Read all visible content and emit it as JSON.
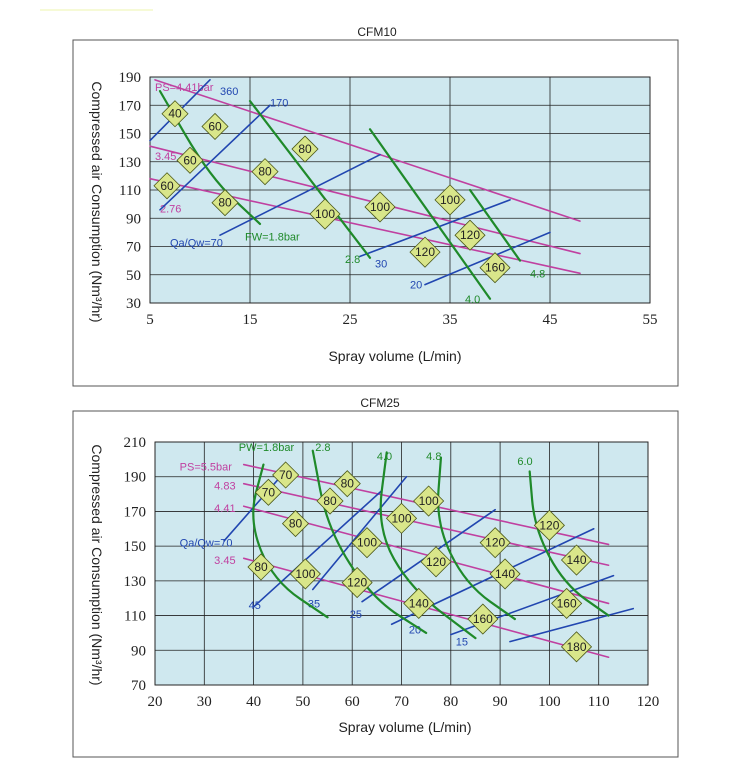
{
  "decor_line_color": "#f4f9c8",
  "colors": {
    "ps": "#c040a0",
    "fw": "#1f8a2a",
    "qa": "#2146b0",
    "diamond_fill": "#d9e68a",
    "diamond_stroke": "#4d5a1a",
    "plot_bg": "#cfe8ef"
  },
  "chart_data": [
    {
      "type": "line",
      "title": "CFM10",
      "xlabel": "Spray volume (L/min)",
      "ylabel": "Compressed air Consumption (Nm³/hr)",
      "xlim": [
        5,
        55
      ],
      "ylim": [
        30,
        190
      ],
      "xticks": [
        5,
        15,
        25,
        35,
        45,
        55
      ],
      "yticks": [
        30,
        50,
        70,
        90,
        110,
        130,
        150,
        170,
        190
      ],
      "grid": true,
      "series": [
        {
          "group": "ps",
          "name": "PS=4.41bar",
          "points": [
            [
              5.5,
              188
            ],
            [
              48,
              88
            ]
          ],
          "label": {
            "text": "PS=4.41bar",
            "at": [
              5.5,
              183
            ]
          }
        },
        {
          "group": "ps",
          "name": "3.45",
          "points": [
            [
              5,
              141
            ],
            [
              48,
              65
            ]
          ],
          "label": {
            "text": "3.45",
            "at": [
              5.5,
              134
            ]
          }
        },
        {
          "group": "ps",
          "name": "2.76",
          "points": [
            [
              5,
              118
            ],
            [
              48,
              51
            ]
          ],
          "label": {
            "text": "2.76",
            "at": [
              6,
              97
            ]
          }
        },
        {
          "group": "qa",
          "name": "360",
          "points": [
            [
              5,
              145
            ],
            [
              11,
              188
            ]
          ],
          "label": {
            "text": "360",
            "at": [
              12,
              180
            ]
          }
        },
        {
          "group": "qa",
          "name": "170",
          "points": [
            [
              6,
              96
            ],
            [
              17,
              170
            ]
          ],
          "label": {
            "text": "170",
            "at": [
              17,
              172
            ]
          }
        },
        {
          "group": "qa",
          "name": "Qa/Qw=70",
          "points": [
            [
              12,
              78
            ],
            [
              28,
              135
            ]
          ],
          "label": {
            "text": "Qa/Qw=70",
            "at": [
              7,
              73
            ]
          }
        },
        {
          "group": "qa",
          "name": "30",
          "points": [
            [
              26,
              63
            ],
            [
              41,
              103
            ]
          ],
          "label": {
            "text": "30",
            "at": [
              27.5,
              58
            ]
          }
        },
        {
          "group": "qa",
          "name": "20",
          "points": [
            [
              32.5,
              43
            ],
            [
              45,
              80
            ]
          ],
          "label": {
            "text": "20",
            "at": [
              31,
              43
            ]
          }
        },
        {
          "group": "fw",
          "name": "FW=1.8bar",
          "points": [
            [
              6,
              180
            ],
            [
              11,
              119
            ],
            [
              16,
              86
            ]
          ],
          "label": {
            "text": "FW=1.8bar",
            "at": [
              14.5,
              77
            ]
          }
        },
        {
          "group": "fw",
          "name": "2.8",
          "points": [
            [
              15,
              173
            ],
            [
              27,
              62
            ]
          ],
          "label": {
            "text": "2.8",
            "at": [
              24.5,
              61
            ]
          }
        },
        {
          "group": "fw",
          "name": "4.0",
          "points": [
            [
              27,
              153
            ],
            [
              39,
              33
            ]
          ],
          "label": {
            "text": "4.0",
            "at": [
              36.5,
              33
            ]
          }
        },
        {
          "group": "fw",
          "name": "4.8",
          "points": [
            [
              37,
              110
            ],
            [
              42,
              60
            ]
          ],
          "label": {
            "text": "4.8",
            "at": [
              43,
              51
            ]
          }
        }
      ],
      "annotations": [
        {
          "text": "40",
          "at": [
            7.5,
            164
          ]
        },
        {
          "text": "60",
          "at": [
            11.5,
            155
          ]
        },
        {
          "text": "60",
          "at": [
            9,
            131
          ]
        },
        {
          "text": "60",
          "at": [
            6.7,
            113
          ]
        },
        {
          "text": "80",
          "at": [
            12.5,
            101
          ]
        },
        {
          "text": "80",
          "at": [
            16.5,
            123
          ]
        },
        {
          "text": "80",
          "at": [
            20.5,
            139
          ]
        },
        {
          "text": "100",
          "at": [
            22.5,
            93
          ]
        },
        {
          "text": "100",
          "at": [
            28,
            98
          ]
        },
        {
          "text": "100",
          "at": [
            35,
            103
          ]
        },
        {
          "text": "120",
          "at": [
            32.5,
            66
          ]
        },
        {
          "text": "120",
          "at": [
            37,
            78
          ]
        },
        {
          "text": "160",
          "at": [
            39.5,
            55
          ]
        }
      ]
    },
    {
      "type": "line",
      "title": "CFM25",
      "xlabel": "Spray volume (L/min)",
      "ylabel": "Compressed air Consumption (Nm³/hr)",
      "xlim": [
        20,
        120
      ],
      "ylim": [
        70,
        210
      ],
      "xticks": [
        20,
        30,
        40,
        50,
        60,
        70,
        80,
        90,
        100,
        110,
        120
      ],
      "yticks": [
        70,
        90,
        110,
        130,
        150,
        170,
        190,
        210
      ],
      "grid": true,
      "series": [
        {
          "group": "ps",
          "name": "PS=5.5bar",
          "points": [
            [
              38,
              197
            ],
            [
              112,
              151
            ]
          ],
          "label": {
            "text": "PS=5.5bar",
            "at": [
              25,
              196
            ]
          }
        },
        {
          "group": "ps",
          "name": "4.83",
          "points": [
            [
              38,
              186
            ],
            [
              112,
              139
            ]
          ],
          "label": {
            "text": "4.83",
            "at": [
              32,
              185
            ]
          }
        },
        {
          "group": "ps",
          "name": "4.41",
          "points": [
            [
              38,
              173
            ],
            [
              112,
              117
            ]
          ],
          "label": {
            "text": "4.41",
            "at": [
              32,
              172
            ]
          }
        },
        {
          "group": "ps",
          "name": "3.45",
          "points": [
            [
              38,
              143
            ],
            [
              112,
              86
            ]
          ],
          "label": {
            "text": "3.45",
            "at": [
              32,
              142
            ]
          }
        },
        {
          "group": "qa",
          "name": "Qa/Qw=70",
          "points": [
            [
              34,
              153
            ],
            [
              47,
              195
            ]
          ],
          "label": {
            "text": "Qa/Qw=70",
            "at": [
              25,
              152
            ]
          }
        },
        {
          "group": "qa",
          "name": "45",
          "points": [
            [
              40,
              115
            ],
            [
              66,
              182
            ]
          ],
          "label": {
            "text": "45",
            "at": [
              39,
              116
            ]
          }
        },
        {
          "group": "qa",
          "name": "35",
          "points": [
            [
              52,
              125
            ],
            [
              71,
              190
            ]
          ],
          "label": {
            "text": "35",
            "at": [
              51,
              117
            ]
          }
        },
        {
          "group": "qa",
          "name": "25",
          "points": [
            [
              62,
              118
            ],
            [
              89,
              171
            ]
          ],
          "label": {
            "text": "25",
            "at": [
              59.5,
              111
            ]
          }
        },
        {
          "group": "qa",
          "name": "20",
          "points": [
            [
              68,
              105
            ],
            [
              109,
              160
            ]
          ],
          "label": {
            "text": "20",
            "at": [
              71.5,
              102
            ]
          }
        },
        {
          "group": "qa",
          "name": "15",
          "points": [
            [
              80,
              99
            ],
            [
              113,
              133
            ]
          ],
          "label": {
            "text": "15",
            "at": [
              81,
              95
            ]
          }
        },
        {
          "group": "qa",
          "name": "",
          "points": [
            [
              92,
              95
            ],
            [
              117,
              114
            ]
          ]
        },
        {
          "group": "fw",
          "name": "PW=1.8bar",
          "points": [
            [
              42,
              197
            ],
            [
              39,
              165
            ],
            [
              44,
              130
            ],
            [
              55,
              109
            ]
          ],
          "label": {
            "text": "PW=1.8bar",
            "at": [
              37,
              207
            ]
          }
        },
        {
          "group": "fw",
          "name": "2.8",
          "points": [
            [
              52,
              205
            ],
            [
              55,
              160
            ],
            [
              64,
              120
            ],
            [
              75,
              100
            ]
          ],
          "label": {
            "text": "2.8",
            "at": [
              52.5,
              207
            ]
          }
        },
        {
          "group": "fw",
          "name": "4.0",
          "points": [
            [
              67,
              204
            ],
            [
              65,
              160
            ],
            [
              72,
              125
            ],
            [
              85,
              97
            ]
          ],
          "label": {
            "text": "4.0",
            "at": [
              65,
              202
            ]
          }
        },
        {
          "group": "fw",
          "name": "4.8",
          "points": [
            [
              78,
              201
            ],
            [
              77,
              163
            ],
            [
              83,
              128
            ],
            [
              93,
              108
            ]
          ],
          "label": {
            "text": "4.8",
            "at": [
              75,
              202
            ]
          }
        },
        {
          "group": "fw",
          "name": "6.0",
          "points": [
            [
              96,
              193
            ],
            [
              97,
              160
            ],
            [
              103,
              128
            ],
            [
              112,
              110
            ]
          ],
          "label": {
            "text": "6.0",
            "at": [
              93.5,
              199
            ]
          }
        }
      ],
      "annotations": [
        {
          "text": "70",
          "at": [
            46.5,
            191
          ]
        },
        {
          "text": "70",
          "at": [
            43,
            181
          ]
        },
        {
          "text": "80",
          "at": [
            59,
            186
          ]
        },
        {
          "text": "80",
          "at": [
            55.5,
            176
          ]
        },
        {
          "text": "80",
          "at": [
            48.5,
            163
          ]
        },
        {
          "text": "80",
          "at": [
            41.5,
            138
          ]
        },
        {
          "text": "100",
          "at": [
            75.5,
            176
          ]
        },
        {
          "text": "100",
          "at": [
            70,
            166
          ]
        },
        {
          "text": "100",
          "at": [
            63,
            152
          ]
        },
        {
          "text": "100",
          "at": [
            50.5,
            134
          ]
        },
        {
          "text": "120",
          "at": [
            100,
            162
          ]
        },
        {
          "text": "120",
          "at": [
            89,
            152
          ]
        },
        {
          "text": "120",
          "at": [
            77,
            141
          ]
        },
        {
          "text": "120",
          "at": [
            61,
            129
          ]
        },
        {
          "text": "140",
          "at": [
            105.5,
            142
          ]
        },
        {
          "text": "140",
          "at": [
            91,
            134
          ]
        },
        {
          "text": "140",
          "at": [
            73.5,
            117
          ]
        },
        {
          "text": "160",
          "at": [
            103.5,
            117
          ]
        },
        {
          "text": "160",
          "at": [
            86.5,
            108
          ]
        },
        {
          "text": "180",
          "at": [
            105.5,
            92
          ]
        }
      ]
    }
  ]
}
